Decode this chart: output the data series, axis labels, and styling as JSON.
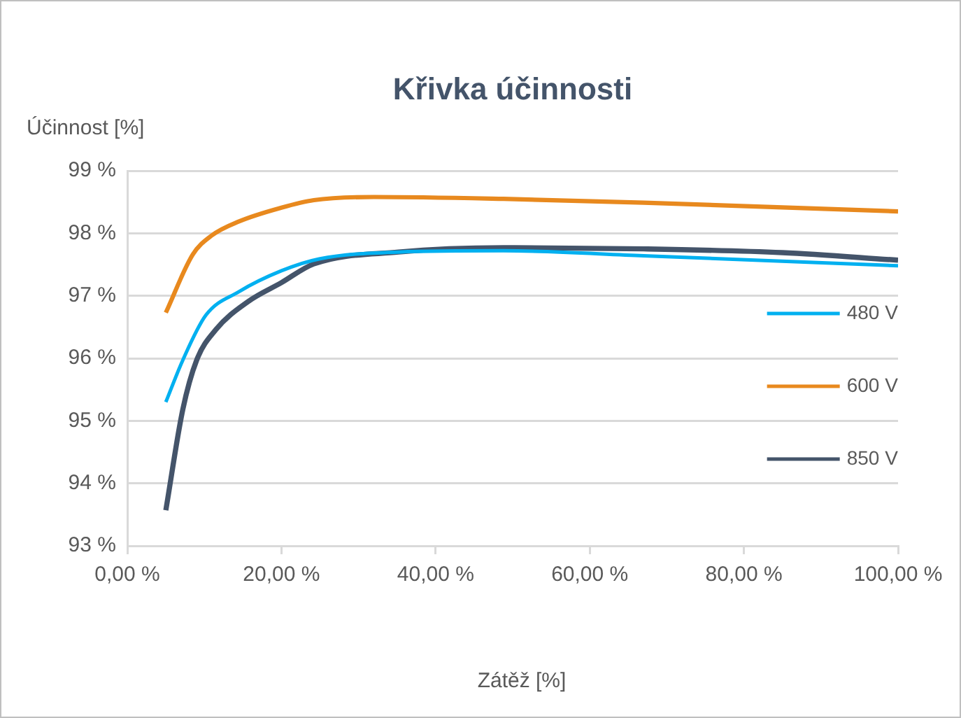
{
  "chart_data": {
    "type": "line",
    "title": "Křivka účinnosti",
    "xlabel": "Zátěž [%]",
    "ylabel": "Účinnost [%]",
    "series": [
      {
        "name": "480 V",
        "color": "#00b0f0",
        "x": [
          5,
          7.2,
          10.2,
          14.4,
          20,
          24.9,
          35.2,
          48.8,
          67,
          100
        ],
        "values": [
          95.3,
          95.97,
          96.69,
          97.06,
          97.4,
          97.59,
          97.7,
          97.72,
          97.64,
          97.48
        ]
      },
      {
        "name": "600 V",
        "color": "#e8891e",
        "x": [
          5,
          8.5,
          10.9,
          14.5,
          20,
          24.2,
          32,
          48.8,
          67,
          100
        ],
        "values": [
          96.73,
          97.66,
          97.96,
          98.19,
          98.41,
          98.53,
          98.58,
          98.55,
          98.49,
          98.35
        ]
      },
      {
        "name": "850 V",
        "color": "#44546a",
        "x": [
          5,
          7.2,
          9,
          11.5,
          15.7,
          20,
          24.2,
          35.2,
          48.8,
          67,
          85,
          100
        ],
        "values": [
          93.57,
          95.18,
          95.97,
          96.46,
          96.91,
          97.21,
          97.51,
          97.7,
          97.77,
          97.75,
          97.69,
          97.57
        ]
      }
    ],
    "xlim": [
      0,
      100
    ],
    "xticks": [
      {
        "value": 0,
        "label": "0,00 %"
      },
      {
        "value": 20,
        "label": "20,00 %"
      },
      {
        "value": 40,
        "label": "40,00 %"
      },
      {
        "value": 60,
        "label": "60,00 %"
      },
      {
        "value": 80,
        "label": "80,00 %"
      },
      {
        "value": 100,
        "label": "100,00 %"
      }
    ],
    "ylim": [
      93,
      99
    ],
    "yticks": [
      {
        "value": 93,
        "label": "93 %"
      },
      {
        "value": 94,
        "label": "94 %"
      },
      {
        "value": 95,
        "label": "95 %"
      },
      {
        "value": 96,
        "label": "96 %"
      },
      {
        "value": 97,
        "label": "97 %"
      },
      {
        "value": 98,
        "label": "98 %"
      },
      {
        "value": 99,
        "label": "99 %"
      }
    ],
    "grid": "y",
    "legend": "right",
    "marker": "none",
    "line_style": "solid"
  }
}
